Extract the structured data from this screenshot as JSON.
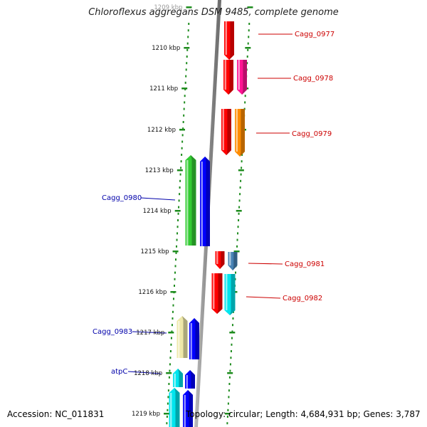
{
  "title": "Chloroflexus aggregans DSM 9485, complete genome",
  "footer": {
    "accession": "Accession: NC_011831",
    "topology": "Topology: circular; Length: 4,684,931 bp; Genes: 3,787"
  },
  "ticks": [
    "1209 kbp",
    "1210 kbp",
    "1211 kbp",
    "1212 kbp",
    "1213 kbp",
    "1214 kbp",
    "1215 kbp",
    "1216 kbp",
    "1217 kbp",
    "1218 kbp",
    "1219 kbp"
  ],
  "genes": [
    {
      "id": "cagg0977",
      "label": "Cagg_0977",
      "strand": "+",
      "color": "#ff0000",
      "label_color": "#cc0000"
    },
    {
      "id": "cagg0978",
      "label": "Cagg_0978",
      "strand": "+",
      "color": "#ff1493",
      "label_color": "#cc0000"
    },
    {
      "id": "cagg0979",
      "label": "Cagg_0979",
      "strand": "+",
      "color": "#ff8c00",
      "label_color": "#cc0000"
    },
    {
      "id": "cagg0980",
      "label": "Cagg_0980",
      "strand": "-",
      "color": "#33cc33",
      "label_color": "#0000aa"
    },
    {
      "id": "cagg0981",
      "label": "Cagg_0981",
      "strand": "+",
      "color": "#4682b4",
      "label_color": "#cc0000"
    },
    {
      "id": "cagg0982",
      "label": "Cagg_0982",
      "strand": "+",
      "color": "#00e5ee",
      "label_color": "#cc0000"
    },
    {
      "id": "cagg0983",
      "label": "Cagg_0983",
      "strand": "-",
      "color": "#eee8aa",
      "label_color": "#0000aa"
    },
    {
      "id": "atpC",
      "label": "atpC",
      "strand": "-",
      "color": "#00e5ee",
      "label_color": "#0000aa"
    },
    {
      "id": "unlabeled",
      "label": "",
      "strand": "-",
      "color": "#00e5ee",
      "label_color": "#0000aa"
    }
  ]
}
